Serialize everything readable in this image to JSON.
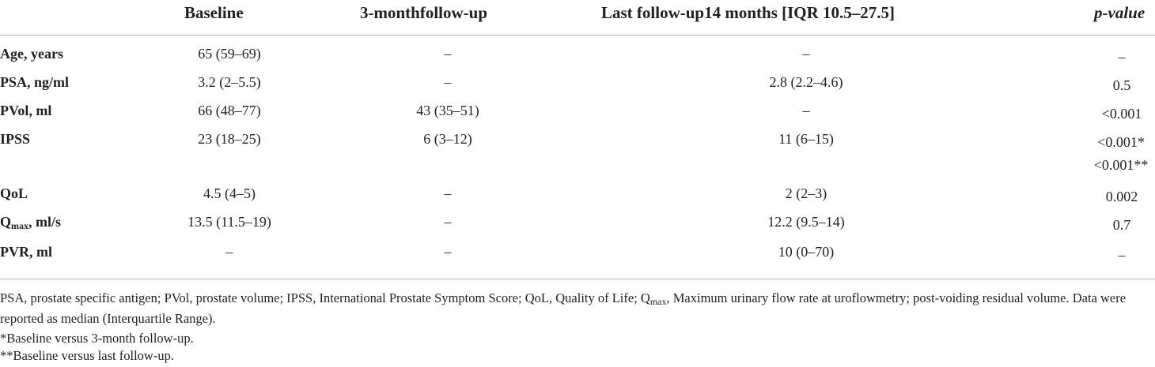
{
  "table": {
    "headers": {
      "baseline": "Baseline",
      "three_month": "3-monthfollow-up",
      "last_followup": "Last follow-up14 months [IQR 10.5–27.5]",
      "p_value": "p-value"
    },
    "rows": [
      {
        "label": "Age, years",
        "baseline": "65 (59–69)",
        "three_month": "–",
        "last_followup": "–",
        "p_value": "–"
      },
      {
        "label": "PSA, ng/ml",
        "baseline": "3.2 (2–5.5)",
        "three_month": "–",
        "last_followup": "2.8 (2.2–4.6)",
        "p_value": "0.5"
      },
      {
        "label": "PVol, ml",
        "baseline": "66 (48–77)",
        "three_month": "43 (35–51)",
        "last_followup": "–",
        "p_value": "<0.001"
      },
      {
        "label": "IPSS",
        "baseline": "23 (18–25)",
        "three_month": "6 (3–12)",
        "last_followup": "11 (6–15)",
        "p_value": "<0.001*",
        "p_value_2": "<0.001**"
      },
      {
        "label": "QoL",
        "baseline": "4.5 (4–5)",
        "three_month": "–",
        "last_followup": "2 (2–3)",
        "p_value": "0.002"
      },
      {
        "label_main": "Q",
        "label_sub": "max",
        "label_rest": ", ml/s",
        "baseline": "13.5 (11.5–19)",
        "three_month": "–",
        "last_followup": "12.2 (9.5–14)",
        "p_value": "0.7"
      },
      {
        "label": "PVR, ml",
        "baseline": "–",
        "three_month": "–",
        "last_followup": "10 (0–70)",
        "p_value": "–"
      }
    ]
  },
  "footnotes": {
    "abbrev_pre": "PSA, prostate specific antigen; PVol, prostate volume; IPSS, International Prostate Symptom Score; QoL, Quality of Life; Q",
    "abbrev_sub": "max",
    "abbrev_post": ", Maximum urinary flow rate at uroflowmetry; post-voiding residual volume. Data were reported as median (Interquartile Range).",
    "note1": "*Baseline versus 3-month follow-up.",
    "note2": "**Baseline versus last follow-up."
  }
}
